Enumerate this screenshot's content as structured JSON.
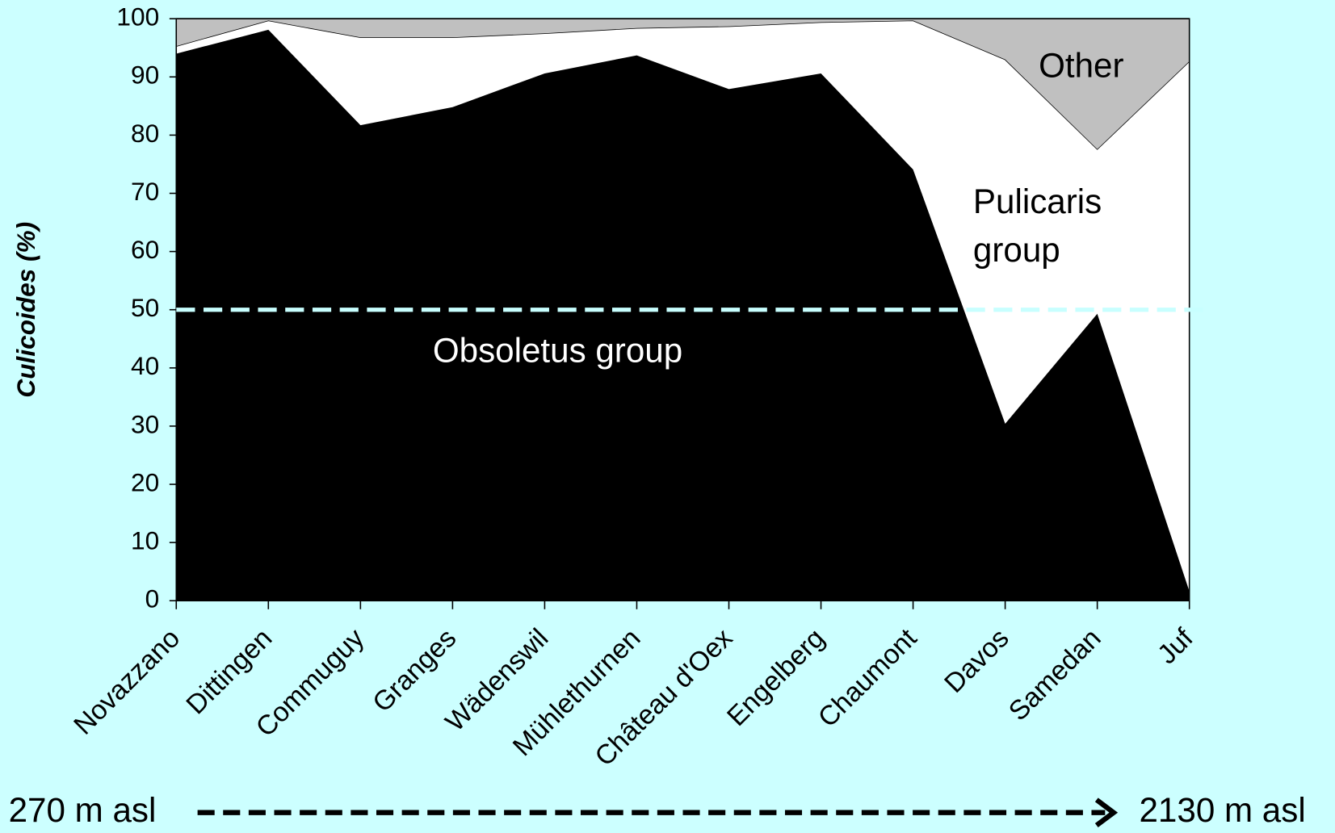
{
  "chart_data": {
    "type": "stacked_area",
    "y_label": "Culicoides (%)",
    "categories": [
      "Novazzano",
      "Dittingen",
      "Commuguy",
      "Granges",
      "Wädenswil",
      "Mühlethurnen",
      "Château d'Oex",
      "Engelberg",
      "Chaumont",
      "Davos",
      "Samedan",
      "Juf"
    ],
    "series": [
      {
        "name": "Obsoletus group",
        "color": "#000000",
        "values": [
          94.0,
          98.1,
          81.7,
          84.8,
          90.6,
          93.7,
          87.9,
          90.6,
          74.1,
          30.4,
          49.3,
          1.6
        ]
      },
      {
        "name": "Pulicaris group",
        "color": "#ffffff",
        "values": [
          1.3,
          1.6,
          15.1,
          12.0,
          6.9,
          4.7,
          10.8,
          8.8,
          25.6,
          62.6,
          28.3,
          91.1
        ]
      },
      {
        "name": "Other",
        "color": "#c0c0c0",
        "values": [
          4.7,
          0.3,
          3.2,
          3.2,
          2.5,
          1.6,
          1.3,
          0.6,
          0.3,
          7.0,
          22.4,
          7.3
        ]
      }
    ],
    "ylim": [
      0,
      100
    ],
    "yticks": [
      0,
      10,
      20,
      30,
      40,
      50,
      60,
      70,
      80,
      90,
      100
    ],
    "reference_line": 50,
    "reference_color": "#c8ffff",
    "annotations": [
      "270 m asl",
      "2130 m asl"
    ]
  }
}
